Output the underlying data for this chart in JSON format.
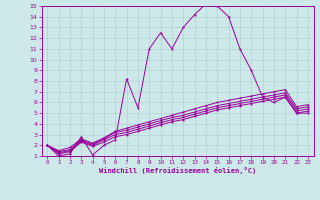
{
  "xlabel": "Windchill (Refroidissement éolien,°C)",
  "xlim": [
    -0.5,
    23.5
  ],
  "ylim": [
    1,
    15
  ],
  "xticks": [
    0,
    1,
    2,
    3,
    4,
    5,
    6,
    7,
    8,
    9,
    10,
    11,
    12,
    13,
    14,
    15,
    16,
    17,
    18,
    19,
    20,
    21,
    22,
    23
  ],
  "yticks": [
    1,
    2,
    3,
    4,
    5,
    6,
    7,
    8,
    9,
    10,
    11,
    12,
    13,
    14,
    15
  ],
  "bg_color": "#cce8e8",
  "line_color": "#990099",
  "grid_color": "#aacccc",
  "lines": [
    {
      "x": [
        0,
        1,
        2,
        3,
        4,
        5,
        6,
        7,
        8,
        9,
        10,
        11,
        12,
        13,
        14,
        15,
        16,
        17,
        18,
        19,
        20,
        21,
        22,
        23
      ],
      "y": [
        2.0,
        1.0,
        1.2,
        2.8,
        1.1,
        2.0,
        2.5,
        8.2,
        5.5,
        11.0,
        12.5,
        11.0,
        13.0,
        14.2,
        15.2,
        15.0,
        14.0,
        11.0,
        9.0,
        6.5,
        6.0,
        6.5,
        5.0,
        5.0
      ]
    },
    {
      "x": [
        0,
        1,
        2,
        3,
        4,
        5,
        6,
        7,
        8,
        9,
        10,
        11,
        12,
        13,
        14,
        15,
        16,
        17,
        18,
        19,
        20,
        21,
        22,
        23
      ],
      "y": [
        2.0,
        1.2,
        1.4,
        2.3,
        1.9,
        2.3,
        2.8,
        3.0,
        3.3,
        3.6,
        3.9,
        4.2,
        4.4,
        4.7,
        5.0,
        5.3,
        5.5,
        5.7,
        5.9,
        6.1,
        6.3,
        6.5,
        5.0,
        5.2
      ]
    },
    {
      "x": [
        0,
        1,
        2,
        3,
        4,
        5,
        6,
        7,
        8,
        9,
        10,
        11,
        12,
        13,
        14,
        15,
        16,
        17,
        18,
        19,
        20,
        21,
        22,
        23
      ],
      "y": [
        2.0,
        1.3,
        1.5,
        2.4,
        2.0,
        2.5,
        3.0,
        3.2,
        3.5,
        3.8,
        4.1,
        4.4,
        4.6,
        4.9,
        5.2,
        5.5,
        5.7,
        5.9,
        6.1,
        6.3,
        6.5,
        6.7,
        5.2,
        5.4
      ]
    },
    {
      "x": [
        0,
        1,
        2,
        3,
        4,
        5,
        6,
        7,
        8,
        9,
        10,
        11,
        12,
        13,
        14,
        15,
        16,
        17,
        18,
        19,
        20,
        21,
        22,
        23
      ],
      "y": [
        2.0,
        1.4,
        1.6,
        2.5,
        2.1,
        2.6,
        3.2,
        3.4,
        3.7,
        4.0,
        4.3,
        4.6,
        4.8,
        5.1,
        5.4,
        5.7,
        5.9,
        6.1,
        6.3,
        6.5,
        6.7,
        6.9,
        5.4,
        5.6
      ]
    },
    {
      "x": [
        0,
        1,
        2,
        3,
        4,
        5,
        6,
        7,
        8,
        9,
        10,
        11,
        12,
        13,
        14,
        15,
        16,
        17,
        18,
        19,
        20,
        21,
        22,
        23
      ],
      "y": [
        2.0,
        1.5,
        1.8,
        2.6,
        2.2,
        2.7,
        3.3,
        3.6,
        3.9,
        4.2,
        4.5,
        4.8,
        5.1,
        5.4,
        5.7,
        6.0,
        6.2,
        6.4,
        6.6,
        6.8,
        7.0,
        7.2,
        5.6,
        5.8
      ]
    }
  ]
}
